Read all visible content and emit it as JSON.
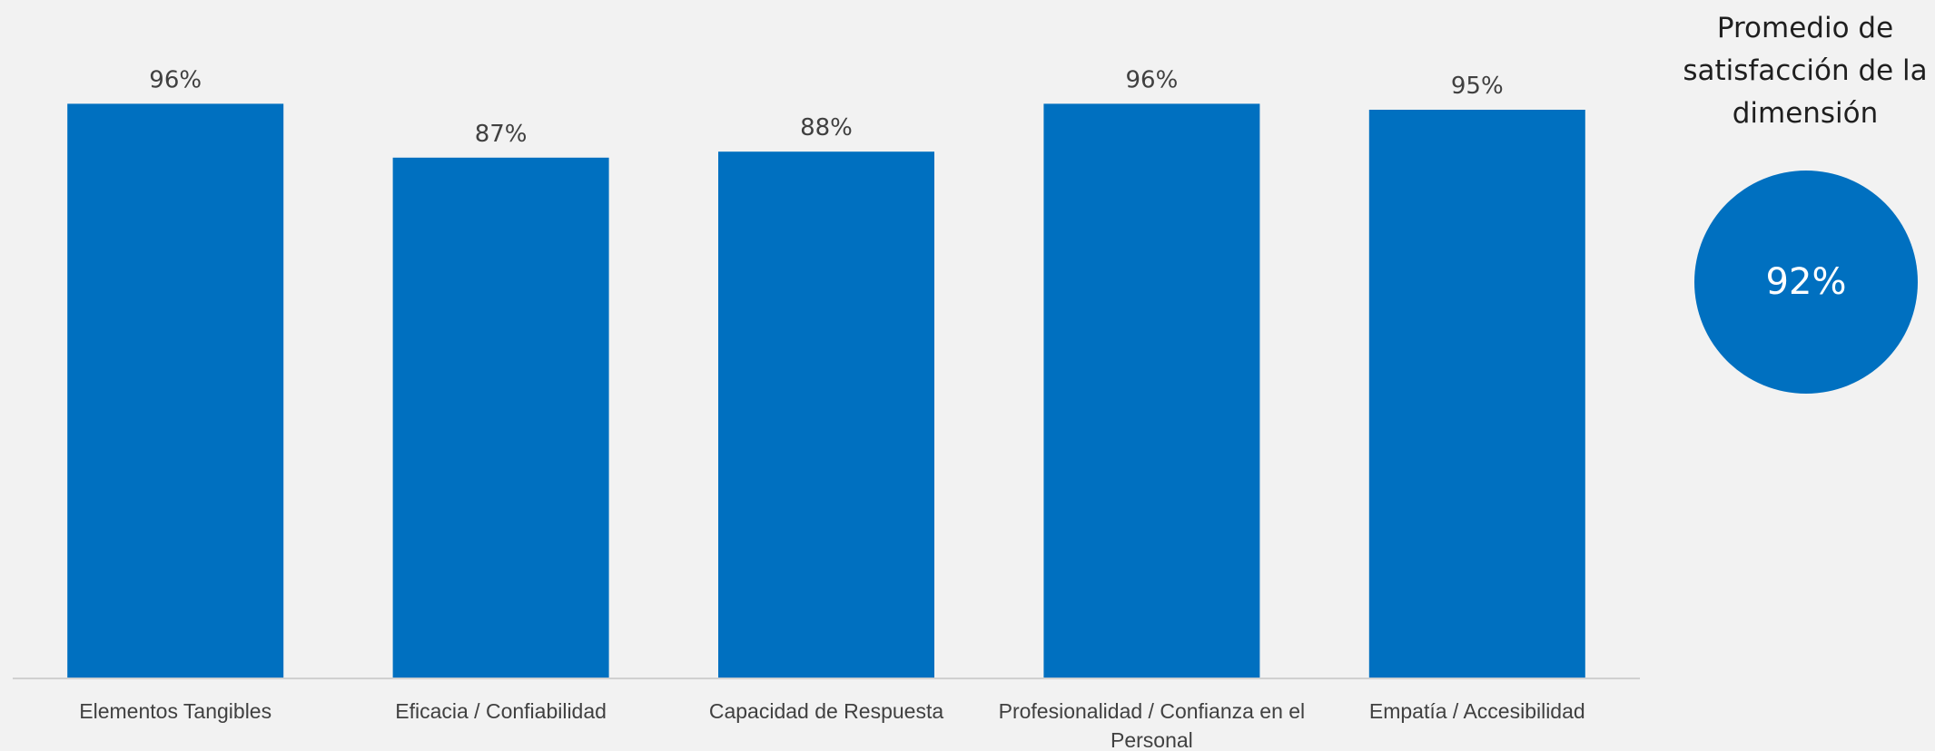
{
  "chart_data": {
    "type": "bar",
    "categories": [
      "Elementos Tangibles",
      "Eficacia / Confiabilidad",
      "Capacidad de Respuesta",
      "Profesionalidad / Confianza en el Personal",
      "Empatía / Accesibilidad"
    ],
    "category_lines": [
      [
        "Elementos Tangibles"
      ],
      [
        "Eficacia / Confiabilidad"
      ],
      [
        "Capacidad de Respuesta"
      ],
      [
        "Profesionalidad / Confianza en el",
        "Personal"
      ],
      [
        "Empatía / Accesibilidad"
      ]
    ],
    "values": [
      96,
      87,
      88,
      96,
      95
    ],
    "value_labels": [
      "96%",
      "87%",
      "88%",
      "96%",
      "95%"
    ],
    "ylim": [
      0,
      100
    ],
    "grid": false,
    "bar_color": "#0070c0"
  },
  "summary": {
    "title_lines": [
      "Promedio de",
      "satisfacción de la",
      "dimensión"
    ],
    "value": "92%"
  }
}
